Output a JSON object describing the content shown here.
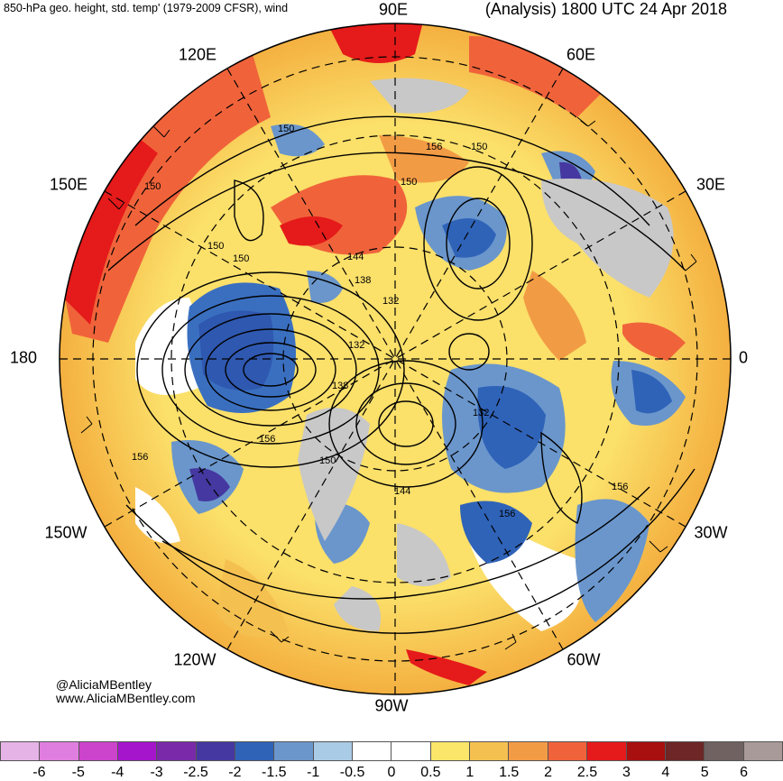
{
  "header": {
    "left_title": "850-hPa geo. height, std. temp' (1979-2009 CFSR), wind",
    "right_title": "(Analysis) 1800 UTC 24 Apr 2018"
  },
  "map": {
    "projection": "north-polar-stereographic",
    "longitude_labels": {
      "e90": "90E",
      "e60": "60E",
      "e30": "30E",
      "zero": "0",
      "w30": "30W",
      "w60": "60W",
      "w90": "90W",
      "w120": "120W",
      "w150": "150W",
      "dl180": "180",
      "e150": "150E",
      "e120": "120E"
    },
    "contour_labels": {
      "a": "150",
      "b": "150",
      "c": "156",
      "d": "150",
      "e": "150",
      "f": "150",
      "g": "144",
      "h": "138",
      "i": "132",
      "j": "132",
      "k": "138",
      "l": "150",
      "m": "144",
      "n": "132",
      "o": "156",
      "p": "156",
      "q": "156",
      "r": "156",
      "s": "150"
    },
    "colors": {
      "ocean_cold": "#3a6fc0",
      "land_gray": "#c8c8c8",
      "warm_strong": "#e42020",
      "warm_mid": "#f2883a",
      "warm_light": "#fbd260",
      "neutral": "#ffffff"
    }
  },
  "credits": {
    "twitter": "@AliciaMBentley",
    "website": "www.AliciaMBentley.com"
  },
  "colorbar": {
    "ticks": [
      "-6",
      "-5",
      "-4",
      "-3",
      "-2.5",
      "-2",
      "-1.5",
      "-1",
      "-0.5",
      "0",
      "0.5",
      "1",
      "1.5",
      "2",
      "2.5",
      "3",
      "4",
      "5",
      "6"
    ],
    "swatches": [
      "#e6b3e6",
      "#e07ee0",
      "#cc44cc",
      "#a515cc",
      "#7a2aa8",
      "#4538a0",
      "#2f63b8",
      "#6a96cc",
      "#a9cbe6",
      "#ffffff",
      "#ffffff",
      "#fbe66a",
      "#f4c050",
      "#f29b45",
      "#f0633a",
      "#e51a1a",
      "#a80f0f",
      "#6e2626",
      "#6f6260",
      "#a89a98"
    ]
  }
}
